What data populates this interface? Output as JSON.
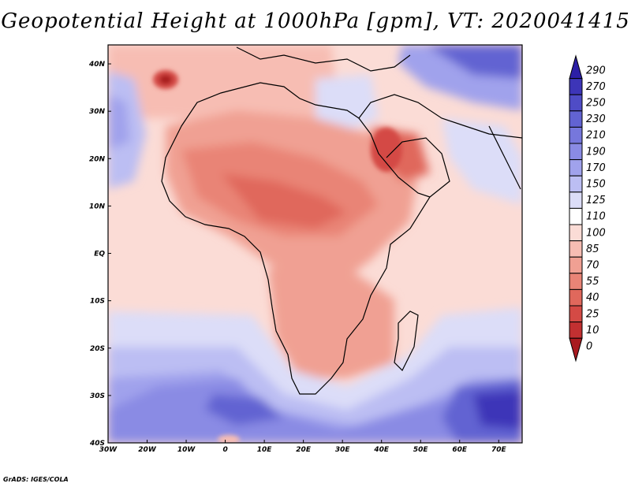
{
  "title": "Geopotential Height at 1000hPa [gpm], VT: 2020041415",
  "map": {
    "lon_ticks": [
      "30W",
      "20W",
      "10W",
      "0",
      "10E",
      "20E",
      "30E",
      "40E",
      "50E",
      "60E",
      "70E"
    ],
    "lat_ticks": [
      "40N",
      "30N",
      "20N",
      "10N",
      "EQ",
      "10S",
      "20S",
      "30S",
      "40S"
    ],
    "lon_range_deg": [
      -30,
      76
    ],
    "lat_range_deg": [
      -40,
      44
    ]
  },
  "colorbar": {
    "levels": [
      "290",
      "270",
      "250",
      "230",
      "210",
      "190",
      "170",
      "150",
      "125",
      "110",
      "100",
      "85",
      "70",
      "55",
      "40",
      "25",
      "10",
      "0"
    ],
    "colors": [
      "#2c1fa6",
      "#3d35b8",
      "#4f4cc6",
      "#6263d2",
      "#7677dc",
      "#8a8be4",
      "#a0a2ec",
      "#bcbef3",
      "#dcddf8",
      "#ffffff",
      "#fbdcd6",
      "#f7bdb3",
      "#f0a093",
      "#e98476",
      "#e0685c",
      "#d44a45",
      "#c23031",
      "#a81a1f"
    ]
  },
  "credit": "GrADS: IGES/COLA"
}
